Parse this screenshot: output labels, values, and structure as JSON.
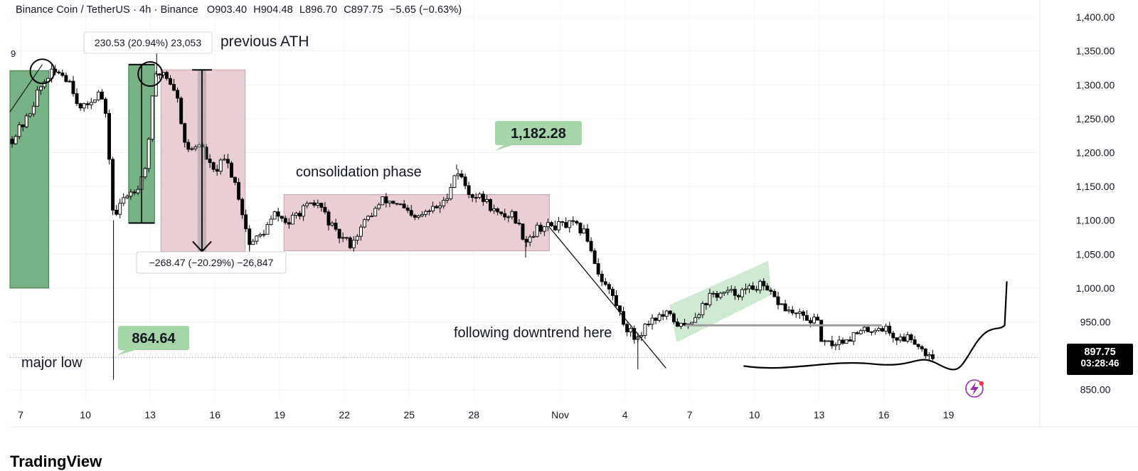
{
  "header": {
    "pair": "Binance Coin / TetherUS",
    "interval": "4h",
    "exchange": "Binance",
    "open": "O903.40",
    "high": "H904.48",
    "low": "L896.70",
    "close": "C897.75",
    "change": "−5.65 (−0.63%)"
  },
  "price_tag": {
    "price": "897.75",
    "countdown": "03:28:46"
  },
  "footer": {
    "brand": "TradingView"
  },
  "colors": {
    "up": "#ffffff",
    "down": "#000000",
    "green_zone": "#5fa56f",
    "pink_zone": "#e8c4cc",
    "label_green": "#a5d6a7",
    "grid": "#f0f3fa",
    "accent_icon": "#9c27b0"
  },
  "chart_data": {
    "type": "candlestick",
    "y_axis": {
      "ticks": [
        "1,400.00",
        "1,350.00",
        "1,300.00",
        "1,250.00",
        "1,200.00",
        "1,150.00",
        "1,100.00",
        "1,050.00",
        "1,000.00",
        "950.00",
        "850.00"
      ],
      "tick_values": [
        1400,
        1350,
        1300,
        1250,
        1200,
        1150,
        1100,
        1050,
        1000,
        950,
        850
      ],
      "range": [
        835,
        1420
      ]
    },
    "x_axis": {
      "ticks": [
        "7",
        "10",
        "13",
        "16",
        "19",
        "22",
        "25",
        "28",
        "Nov",
        "4",
        "7",
        "10",
        "13",
        "16",
        "19"
      ],
      "tick_days": [
        7,
        10,
        13,
        16,
        19,
        22,
        25,
        28,
        32,
        35,
        38,
        41,
        44,
        47,
        50
      ],
      "range_days": [
        6.5,
        54
      ]
    },
    "price_path": [
      {
        "day": 6.6,
        "price": 1220
      },
      {
        "day": 7.3,
        "price": 1250
      },
      {
        "day": 7.8,
        "price": 1290
      },
      {
        "day": 8.3,
        "price": 1315
      },
      {
        "day": 8.8,
        "price": 1320
      },
      {
        "day": 9.3,
        "price": 1305
      },
      {
        "day": 9.8,
        "price": 1260
      },
      {
        "day": 10.3,
        "price": 1280
      },
      {
        "day": 10.7,
        "price": 1290
      },
      {
        "day": 11.0,
        "price": 1240
      },
      {
        "day": 11.3,
        "price": 1100
      },
      {
        "day": 11.8,
        "price": 1135
      },
      {
        "day": 12.4,
        "price": 1150
      },
      {
        "day": 12.8,
        "price": 1180
      },
      {
        "day": 13.2,
        "price": 1310
      },
      {
        "day": 13.6,
        "price": 1320
      },
      {
        "day": 14.2,
        "price": 1290
      },
      {
        "day": 14.7,
        "price": 1200
      },
      {
        "day": 15.3,
        "price": 1215
      },
      {
        "day": 15.9,
        "price": 1170
      },
      {
        "day": 16.5,
        "price": 1190
      },
      {
        "day": 17.0,
        "price": 1150
      },
      {
        "day": 17.6,
        "price": 1065
      },
      {
        "day": 18.2,
        "price": 1080
      },
      {
        "day": 18.8,
        "price": 1110
      },
      {
        "day": 19.4,
        "price": 1095
      },
      {
        "day": 20.0,
        "price": 1115
      },
      {
        "day": 20.8,
        "price": 1125
      },
      {
        "day": 21.6,
        "price": 1080
      },
      {
        "day": 22.3,
        "price": 1065
      },
      {
        "day": 23.0,
        "price": 1100
      },
      {
        "day": 23.8,
        "price": 1130
      },
      {
        "day": 24.5,
        "price": 1125
      },
      {
        "day": 25.2,
        "price": 1100
      },
      {
        "day": 26.0,
        "price": 1115
      },
      {
        "day": 26.6,
        "price": 1125
      },
      {
        "day": 27.2,
        "price": 1175
      },
      {
        "day": 27.8,
        "price": 1140
      },
      {
        "day": 28.5,
        "price": 1130
      },
      {
        "day": 29.2,
        "price": 1105
      },
      {
        "day": 29.8,
        "price": 1110
      },
      {
        "day": 30.4,
        "price": 1070
      },
      {
        "day": 31.0,
        "price": 1090
      },
      {
        "day": 31.8,
        "price": 1092
      },
      {
        "day": 32.6,
        "price": 1093
      },
      {
        "day": 33.2,
        "price": 1080
      },
      {
        "day": 33.8,
        "price": 1020
      },
      {
        "day": 34.4,
        "price": 990
      },
      {
        "day": 35.0,
        "price": 945
      },
      {
        "day": 35.5,
        "price": 925
      },
      {
        "day": 36.2,
        "price": 955
      },
      {
        "day": 37.0,
        "price": 960
      },
      {
        "day": 37.7,
        "price": 940
      },
      {
        "day": 38.4,
        "price": 965
      },
      {
        "day": 39.0,
        "price": 990
      },
      {
        "day": 39.8,
        "price": 992
      },
      {
        "day": 40.6,
        "price": 995
      },
      {
        "day": 41.2,
        "price": 1005
      },
      {
        "day": 41.9,
        "price": 985
      },
      {
        "day": 42.6,
        "price": 965
      },
      {
        "day": 43.4,
        "price": 955
      },
      {
        "day": 43.9,
        "price": 950
      },
      {
        "day": 44.2,
        "price": 915
      },
      {
        "day": 44.8,
        "price": 920
      },
      {
        "day": 45.6,
        "price": 930
      },
      {
        "day": 46.4,
        "price": 940
      },
      {
        "day": 47.0,
        "price": 942
      },
      {
        "day": 47.6,
        "price": 925
      },
      {
        "day": 48.3,
        "price": 928
      },
      {
        "day": 48.9,
        "price": 905
      },
      {
        "day": 49.4,
        "price": 897.75
      }
    ],
    "extreme_wicks": [
      {
        "day": 11.3,
        "low": 864.64
      },
      {
        "day": 13.3,
        "high": 1368
      },
      {
        "day": 17.6,
        "low": 1040
      },
      {
        "day": 27.2,
        "high": 1182.28
      },
      {
        "day": 35.6,
        "low": 880
      },
      {
        "day": 30.4,
        "low": 1045
      }
    ],
    "annotations": {
      "previous_ath_label": "previous ATH",
      "consolidation_label": "consolidation phase",
      "downtrend_label": "following downtrend here",
      "major_low_label": "major low",
      "high_price_label": "1,182.28",
      "low_price_label": "864.64",
      "up_measure_label": "230.53 (20.94%) 23,053",
      "down_measure_label": "−268.47 (−20.29%) −26,847",
      "left_edge_label": "9",
      "up_measure": {
        "from": 1096,
        "to": 1330
      },
      "down_measure": {
        "from": 1322,
        "to": 1054
      },
      "zones": [
        {
          "kind": "green",
          "day_from": 6.5,
          "day_to": 8.3,
          "price_from": 1000,
          "price_to": 1321
        },
        {
          "kind": "green",
          "day_from": 12.0,
          "day_to": 13.2,
          "price_from": 1096,
          "price_to": 1330
        },
        {
          "kind": "pink",
          "day_from": 13.5,
          "day_to": 17.4,
          "price_from": 1054,
          "price_to": 1322
        },
        {
          "kind": "pink",
          "day_from": 19.2,
          "day_to": 31.5,
          "price_from": 1055,
          "price_to": 1138
        },
        {
          "kind": "green-channel",
          "day_from": 37.4,
          "day_to": 41.8,
          "price_from": 930,
          "price_to": 1015
        }
      ],
      "support_line": {
        "day_from": 37.8,
        "day_to": 46.9,
        "price": 945
      },
      "trend_line": {
        "day_from": 31.5,
        "price_from": 1090,
        "day_to": 36.9,
        "price_to": 882
      },
      "current_price_line": 897.75
    }
  }
}
